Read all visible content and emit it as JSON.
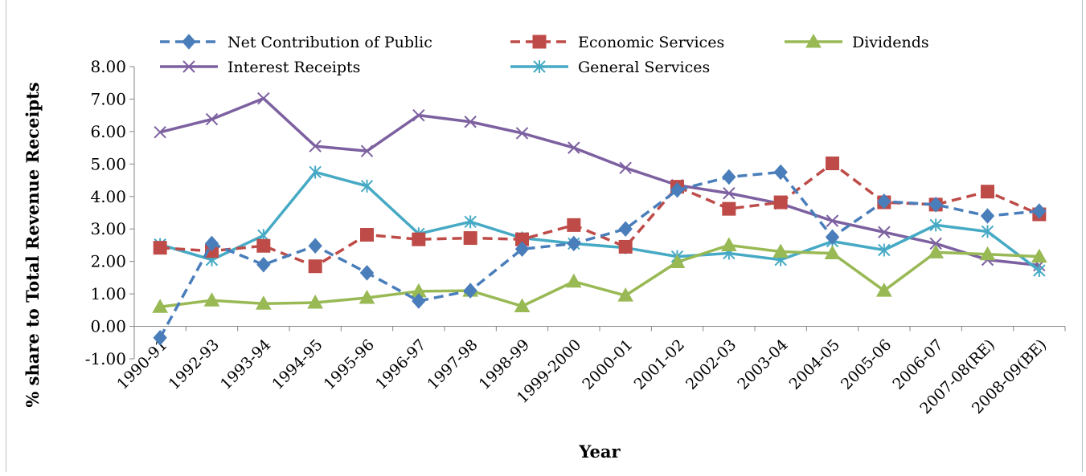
{
  "chart_data": {
    "type": "line",
    "title": "",
    "xlabel": "Year",
    "ylabel": "% share to Total Revenue Receipts",
    "ylim": [
      -1.0,
      8.0
    ],
    "ytick_step": 1.0,
    "grid": false,
    "legend_position": "top",
    "categories": [
      "1990-91",
      "1992-93",
      "1993-94",
      "1994-95",
      "1995-96",
      "1996-97",
      "1997-98",
      "1998-99",
      "1999-2000",
      "2000-01",
      "2001-02",
      "2002-03",
      "2003-04",
      "2004-05",
      "2005-06",
      "2006-07",
      "2007-08(RE)",
      "2008-09(BE)"
    ],
    "series": [
      {
        "name": "Net Contribution of Public",
        "color": "#4a7ebb",
        "marker": "diamond",
        "dash": true,
        "values": [
          -0.35,
          2.55,
          1.9,
          2.48,
          1.65,
          0.78,
          1.1,
          2.38,
          2.55,
          3.0,
          4.2,
          4.6,
          4.75,
          2.75,
          3.85,
          3.75,
          3.4,
          3.55
        ]
      },
      {
        "name": "Economic Services",
        "color": "#be4b48",
        "marker": "square",
        "dash": true,
        "values": [
          2.42,
          2.32,
          2.48,
          1.85,
          2.82,
          2.68,
          2.72,
          2.68,
          3.12,
          2.45,
          4.3,
          3.62,
          3.82,
          5.02,
          3.82,
          3.75,
          4.15,
          3.45
        ]
      },
      {
        "name": "Dividends",
        "color": "#98b954",
        "marker": "triangle",
        "dash": false,
        "values": [
          0.6,
          0.8,
          0.7,
          0.73,
          0.88,
          1.08,
          1.1,
          0.62,
          1.38,
          0.95,
          1.98,
          2.5,
          2.3,
          2.25,
          1.1,
          2.28,
          2.22,
          2.15
        ]
      },
      {
        "name": "Interest Receipts",
        "color": "#7d60a0",
        "marker": "x",
        "dash": false,
        "values": [
          5.98,
          6.38,
          7.02,
          5.55,
          5.4,
          6.5,
          6.3,
          5.95,
          5.5,
          4.88,
          4.35,
          4.1,
          3.78,
          3.25,
          2.9,
          2.55,
          2.05,
          1.88
        ]
      },
      {
        "name": "General Services",
        "color": "#46aac5",
        "marker": "star",
        "dash": false,
        "values": [
          2.52,
          2.05,
          2.8,
          4.75,
          4.32,
          2.85,
          3.22,
          2.72,
          2.55,
          2.42,
          2.15,
          2.25,
          2.05,
          2.62,
          2.35,
          3.12,
          2.92,
          1.72
        ]
      }
    ]
  }
}
